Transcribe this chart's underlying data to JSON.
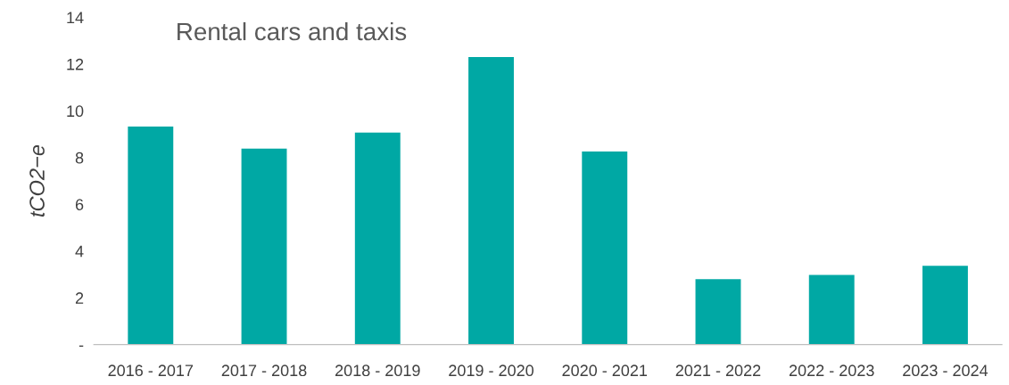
{
  "chart_data": {
    "type": "bar",
    "title": "Rental cars and taxis",
    "ylabel": "tCO2−e",
    "categories": [
      "2016 - 2017",
      "2017 - 2018",
      "2018 - 2019",
      "2019 - 2020",
      "2020 - 2021",
      "2021 - 2022",
      "2022 - 2023",
      "2023 - 2024"
    ],
    "values": [
      9.33,
      8.38,
      9.07,
      12.3,
      8.26,
      2.8,
      2.98,
      3.37
    ],
    "color": "#00a8a4",
    "ylim": [
      0,
      14
    ],
    "yticks": [
      {
        "value": 0,
        "label": "-"
      },
      2,
      4,
      6,
      8,
      10,
      12,
      14
    ],
    "grid": false
  }
}
